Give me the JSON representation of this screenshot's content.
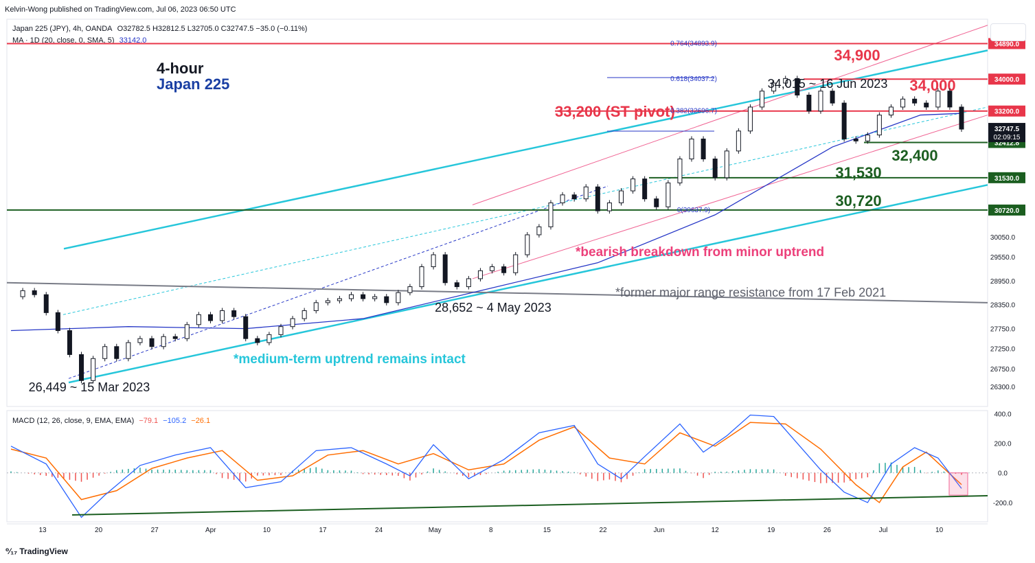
{
  "header": {
    "publisher": "Kelvin-Wong published on TradingView.com, Jul 06, 2023 06:50 UTC",
    "symbol": "Japan 225 (JPY), 4h, OANDA",
    "ohlc": "O32782.5  H32812.5  L32705.0  C32747.5  −35.0 (−0.11%)",
    "ma_label": "MA · 1D (20, close, 0, SMA, 5)",
    "ma_value": "33142.0",
    "macd_label": "MACD (12, 26, close, 9, EMA, EMA)",
    "macd_v1": "−79.1",
    "macd_v2": "−105.2",
    "macd_v3": "−26.1"
  },
  "footer": {
    "brand": "TradingView"
  },
  "colors": {
    "resistance": "#e8364a",
    "support": "#1b5e20",
    "uptrend": "#26c6da",
    "minor": "#f06292",
    "ma": "#2536c6",
    "macd": "#2962ff",
    "signal": "#ff6d00",
    "hist_pos": "#26a69a",
    "hist_neg": "#ef5350",
    "annotation_pink": "#ec407a",
    "annotation_cyan": "#26c6da"
  },
  "chart_data": [
    {
      "type": "candlestick",
      "title": "4-hour",
      "subtitle": "Japan 225",
      "x_ticks": [
        "13",
        "20",
        "27",
        "Apr",
        "10",
        "17",
        "24",
        "May",
        "8",
        "15",
        "22",
        "Jun",
        "12",
        "19",
        "26",
        "Jul",
        "10"
      ],
      "y_ticks": [
        26300.0,
        26750.0,
        27250.0,
        27750.0,
        28350.0,
        28950.0,
        29550.0,
        30050.0,
        30720.0,
        31530.0,
        32412.8,
        33200.0,
        34000.0,
        34890.0
      ],
      "ylim": [
        25800,
        35500
      ],
      "close_path": [
        [
          0,
          28550
        ],
        [
          2,
          28700
        ],
        [
          4,
          28600
        ],
        [
          6,
          28150
        ],
        [
          8,
          27700
        ],
        [
          10,
          27100
        ],
        [
          12,
          26449
        ],
        [
          14,
          27000
        ],
        [
          16,
          27300
        ],
        [
          18,
          27000
        ],
        [
          20,
          27400
        ],
        [
          22,
          27500
        ],
        [
          24,
          27300
        ],
        [
          26,
          27550
        ],
        [
          28,
          27500
        ],
        [
          30,
          27850
        ],
        [
          32,
          28100
        ],
        [
          34,
          27950
        ],
        [
          36,
          28200
        ],
        [
          38,
          28050
        ],
        [
          40,
          27500
        ],
        [
          42,
          27400
        ],
        [
          44,
          27600
        ],
        [
          46,
          27800
        ],
        [
          48,
          28000
        ],
        [
          50,
          28200
        ],
        [
          52,
          28400
        ],
        [
          54,
          28450
        ],
        [
          56,
          28500
        ],
        [
          58,
          28600
        ],
        [
          60,
          28500
        ],
        [
          62,
          28550
        ],
        [
          64,
          28400
        ],
        [
          66,
          28652
        ],
        [
          68,
          28800
        ],
        [
          70,
          29300
        ],
        [
          72,
          29600
        ],
        [
          74,
          28900
        ],
        [
          76,
          28800
        ],
        [
          78,
          29000
        ],
        [
          80,
          29200
        ],
        [
          82,
          29300
        ],
        [
          84,
          29150
        ],
        [
          86,
          29600
        ],
        [
          88,
          30100
        ],
        [
          90,
          30300
        ],
        [
          92,
          30900
        ],
        [
          94,
          31100
        ],
        [
          96,
          31000
        ],
        [
          98,
          31300
        ],
        [
          100,
          30700
        ],
        [
          102,
          30900
        ],
        [
          104,
          31200
        ],
        [
          106,
          31500
        ],
        [
          108,
          31000
        ],
        [
          110,
          30800
        ],
        [
          112,
          31400
        ],
        [
          114,
          32000
        ],
        [
          116,
          32500
        ],
        [
          118,
          32000
        ],
        [
          120,
          31530
        ],
        [
          122,
          32200
        ],
        [
          124,
          32700
        ],
        [
          126,
          33300
        ],
        [
          128,
          33700
        ],
        [
          130,
          33900
        ],
        [
          132,
          34015
        ],
        [
          134,
          33600
        ],
        [
          136,
          33200
        ],
        [
          138,
          33700
        ],
        [
          140,
          33400
        ],
        [
          142,
          32500
        ],
        [
          144,
          32450
        ],
        [
          146,
          32600
        ],
        [
          148,
          33100
        ],
        [
          150,
          33300
        ],
        [
          152,
          33500
        ],
        [
          154,
          33400
        ],
        [
          156,
          33300
        ],
        [
          158,
          33700
        ],
        [
          160,
          33300
        ],
        [
          162,
          32747.5
        ]
      ],
      "horizontal_levels": [
        {
          "label": "34,900",
          "value": 34890.0,
          "axis_label": "34890.0",
          "fib": "0.764(34893.9)"
        },
        {
          "label": "34,000",
          "value": 34000.0,
          "axis_label": "34000.0",
          "fib": "0.618(34037.2)"
        },
        {
          "label": "33,200 (ST pivot)",
          "value": 33200.0,
          "axis_label": "33200.0",
          "fib": "0.382(32696.7)"
        },
        {
          "label": "32,400",
          "value": 32412.8,
          "axis_label": "32412.8"
        },
        {
          "label": "31,530",
          "value": 31530.0,
          "axis_label": "31530.0"
        },
        {
          "label": "30,720",
          "value": 30720.0,
          "axis_label": "30720.0",
          "fib": "0(30637.9)"
        }
      ],
      "last_price": {
        "value": "32747.5",
        "countdown": "02:09:15"
      },
      "annotations": [
        "34,015 ~ 16 Jun 2023",
        "28,652 ~ 4 May 2023",
        "26,449 ~ 15 Mar 2023",
        "*bearish breakdown from minor uptrend",
        "*former major range resistance from 17 Feb 2021",
        "*medium-term uptrend remains intact"
      ]
    },
    {
      "type": "line",
      "title": "MACD (12, 26, close, 9, EMA, EMA)",
      "y_ticks": [
        400.0,
        200.0,
        0.0,
        -200.0
      ],
      "ylim": [
        -330,
        420
      ],
      "macd": [
        [
          0,
          180
        ],
        [
          6,
          60
        ],
        [
          12,
          -300
        ],
        [
          16,
          -150
        ],
        [
          22,
          50
        ],
        [
          28,
          120
        ],
        [
          34,
          170
        ],
        [
          40,
          -100
        ],
        [
          46,
          -60
        ],
        [
          52,
          150
        ],
        [
          58,
          170
        ],
        [
          64,
          60
        ],
        [
          68,
          -20
        ],
        [
          72,
          190
        ],
        [
          78,
          -40
        ],
        [
          84,
          90
        ],
        [
          90,
          270
        ],
        [
          96,
          320
        ],
        [
          100,
          60
        ],
        [
          104,
          -40
        ],
        [
          108,
          110
        ],
        [
          114,
          330
        ],
        [
          118,
          140
        ],
        [
          122,
          250
        ],
        [
          126,
          390
        ],
        [
          130,
          380
        ],
        [
          134,
          200
        ],
        [
          138,
          20
        ],
        [
          142,
          -130
        ],
        [
          146,
          -200
        ],
        [
          150,
          60
        ],
        [
          154,
          170
        ],
        [
          158,
          100
        ],
        [
          162,
          -105
        ]
      ],
      "signal": [
        [
          0,
          160
        ],
        [
          6,
          100
        ],
        [
          12,
          -180
        ],
        [
          18,
          -120
        ],
        [
          24,
          30
        ],
        [
          30,
          100
        ],
        [
          36,
          150
        ],
        [
          42,
          -50
        ],
        [
          48,
          -20
        ],
        [
          54,
          120
        ],
        [
          60,
          150
        ],
        [
          66,
          60
        ],
        [
          72,
          130
        ],
        [
          78,
          20
        ],
        [
          84,
          60
        ],
        [
          90,
          220
        ],
        [
          96,
          310
        ],
        [
          102,
          100
        ],
        [
          108,
          60
        ],
        [
          114,
          270
        ],
        [
          120,
          180
        ],
        [
          126,
          340
        ],
        [
          132,
          330
        ],
        [
          138,
          160
        ],
        [
          144,
          -80
        ],
        [
          148,
          -200
        ],
        [
          152,
          40
        ],
        [
          156,
          140
        ],
        [
          162,
          -79
        ]
      ]
    }
  ]
}
